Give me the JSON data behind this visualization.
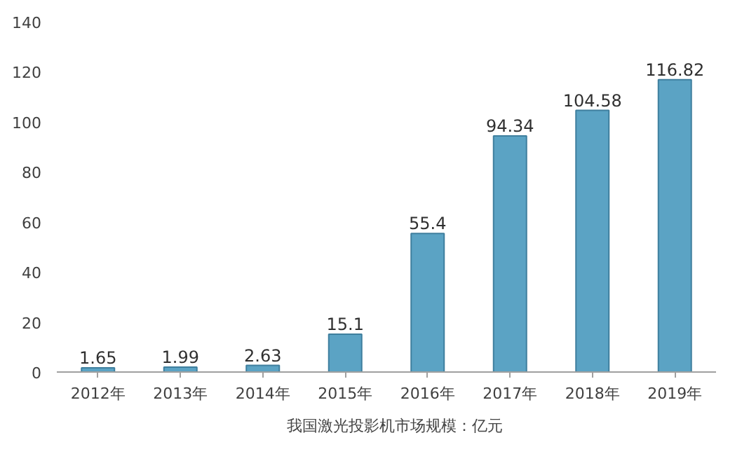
{
  "chart_data": {
    "type": "bar",
    "categories": [
      "2012年",
      "2013年",
      "2014年",
      "2015年",
      "2016年",
      "2017年",
      "2018年",
      "2019年"
    ],
    "series": [
      {
        "name": "我国激光投影机市场规模：亿元",
        "color": "#5ba3c4",
        "values": [
          1.65,
          1.99,
          2.63,
          15.1,
          55.4,
          94.34,
          104.58,
          116.82
        ]
      }
    ],
    "ylim": [
      0,
      140
    ],
    "yticks": [
      0,
      20,
      40,
      60,
      80,
      100,
      120,
      140
    ],
    "grid": false,
    "legend": "bottom",
    "data_labels": true
  }
}
